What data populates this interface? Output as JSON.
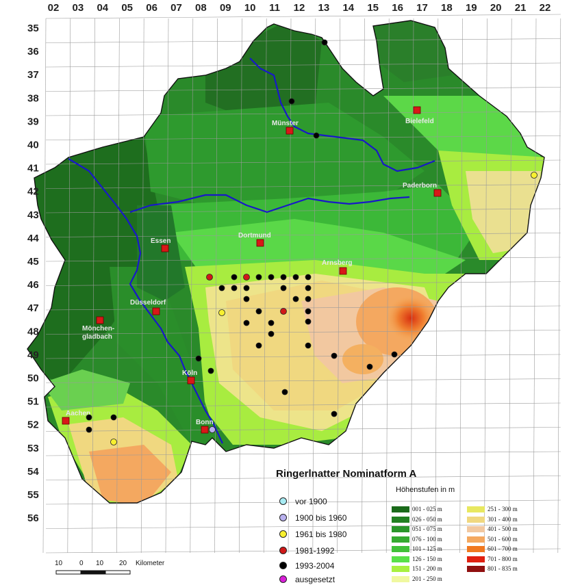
{
  "title": "Ringerlnatter Nominatform A",
  "elevation_title": "Höhenstufen in m",
  "grid": {
    "columns": [
      "02",
      "03",
      "04",
      "05",
      "06",
      "07",
      "08",
      "09",
      "10",
      "11",
      "12",
      "13",
      "14",
      "15",
      "16",
      "17",
      "18",
      "19",
      "20",
      "21",
      "22"
    ],
    "rows": [
      "35",
      "36",
      "37",
      "38",
      "39",
      "40",
      "41",
      "42",
      "43",
      "44",
      "45",
      "46",
      "47",
      "48",
      "49",
      "50",
      "51",
      "52",
      "53",
      "54",
      "55",
      "56"
    ]
  },
  "cities": [
    {
      "name": "Münster"
    },
    {
      "name": "Bielefeld"
    },
    {
      "name": "Paderborn"
    },
    {
      "name": "Essen"
    },
    {
      "name": "Dortmund"
    },
    {
      "name": "Arnsberg"
    },
    {
      "name": "Düsseldorf"
    },
    {
      "name": "Mönchen-"
    },
    {
      "name": "gladbach"
    },
    {
      "name": "Köln"
    },
    {
      "name": "Aachen"
    },
    {
      "name": "Bonn"
    }
  ],
  "record_legend": [
    {
      "label": "vor 1900",
      "color": "#a8ecf4"
    },
    {
      "label": "1900 bis 1960",
      "color": "#b8b0ee"
    },
    {
      "label": "1961 bis 1980",
      "color": "#f8f030"
    },
    {
      "label": "1981-1992",
      "color": "#d01818"
    },
    {
      "label": "1993-2004",
      "color": "#000000"
    },
    {
      "label": "ausgesetzt",
      "color": "#d820d8"
    }
  ],
  "elevation_legend": [
    {
      "label": "001 - 025 m",
      "color": "#1a6a1a"
    },
    {
      "label": "026 - 050 m",
      "color": "#228022"
    },
    {
      "label": "051 - 075 m",
      "color": "#2a962a"
    },
    {
      "label": "076 - 100 m",
      "color": "#35aa30"
    },
    {
      "label": "101 - 125 m",
      "color": "#40c038"
    },
    {
      "label": "126 - 150 m",
      "color": "#58e048"
    },
    {
      "label": "151 - 200 m",
      "color": "#a8f040"
    },
    {
      "label": "201 - 250 m",
      "color": "#f0f8a0"
    },
    {
      "label": "251 - 300 m",
      "color": "#e8e860"
    },
    {
      "label": "301 - 400 m",
      "color": "#f0d880"
    },
    {
      "label": "401 - 500 m",
      "color": "#f2c8a0"
    },
    {
      "label": "501 - 600 m",
      "color": "#f4a860"
    },
    {
      "label": "601 - 700 m",
      "color": "#f07820"
    },
    {
      "label": "701 - 800 m",
      "color": "#e02010"
    },
    {
      "label": "801 - 835 m",
      "color": "#901010"
    }
  ],
  "scale": {
    "ticks": [
      "10",
      "0",
      "10",
      "20"
    ],
    "unit": "Kilometer"
  }
}
